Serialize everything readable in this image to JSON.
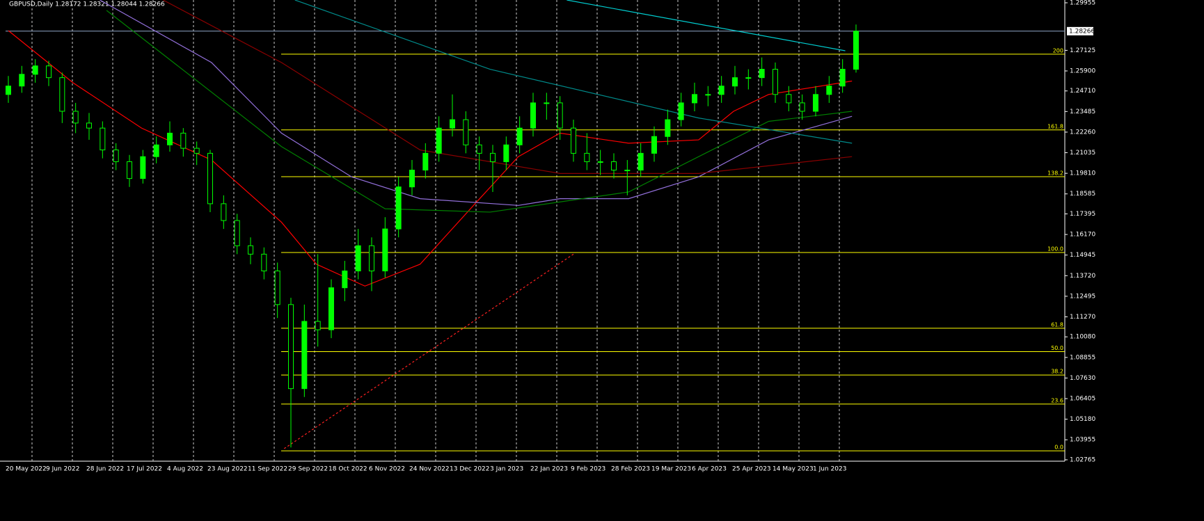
{
  "chart_data": {
    "type": "candlestick",
    "title": "GBPUSD,Daily  1.28172 1.28321 1.28044 1.28266",
    "categories": [
      "20 May 2022",
      "9 Jun 2022",
      "28 Jun 2022",
      "17 Jul 2022",
      "4 Aug 2022",
      "23 Aug 2022",
      "11 Sep 2022",
      "29 Sep 2022",
      "18 Oct 2022",
      "6 Nov 2022",
      "24 Nov 2022",
      "13 Dec 2022",
      "3 Jan 2023",
      "22 Jan 2023",
      "9 Feb 2023",
      "28 Feb 2023",
      "19 Mar 2023",
      "6 Apr 2023",
      "25 Apr 2023",
      "14 May 2023",
      "1 Jun 2023"
    ],
    "ohlc": [
      [
        1.245,
        1.256,
        1.24,
        1.25
      ],
      [
        1.25,
        1.262,
        1.246,
        1.257
      ],
      [
        1.257,
        1.266,
        1.252,
        1.262
      ],
      [
        1.262,
        1.265,
        1.25,
        1.255
      ],
      [
        1.255,
        1.258,
        1.228,
        1.235
      ],
      [
        1.235,
        1.24,
        1.222,
        1.228
      ],
      [
        1.228,
        1.234,
        1.218,
        1.225
      ],
      [
        1.225,
        1.229,
        1.207,
        1.212
      ],
      [
        1.212,
        1.216,
        1.2,
        1.205
      ],
      [
        1.205,
        1.209,
        1.19,
        1.195
      ],
      [
        1.195,
        1.212,
        1.192,
        1.208
      ],
      [
        1.208,
        1.22,
        1.204,
        1.215
      ],
      [
        1.215,
        1.229,
        1.211,
        1.222
      ],
      [
        1.222,
        1.225,
        1.208,
        1.213
      ],
      [
        1.213,
        1.217,
        1.203,
        1.21
      ],
      [
        1.21,
        1.212,
        1.175,
        1.18
      ],
      [
        1.18,
        1.185,
        1.165,
        1.17
      ],
      [
        1.17,
        1.174,
        1.15,
        1.155
      ],
      [
        1.155,
        1.16,
        1.144,
        1.15
      ],
      [
        1.15,
        1.154,
        1.135,
        1.14
      ],
      [
        1.14,
        1.145,
        1.112,
        1.12
      ],
      [
        1.12,
        1.124,
        1.035,
        1.07
      ],
      [
        1.07,
        1.12,
        1.065,
        1.11
      ],
      [
        1.11,
        1.15,
        1.095,
        1.105
      ],
      [
        1.105,
        1.135,
        1.1,
        1.13
      ],
      [
        1.13,
        1.146,
        1.122,
        1.14
      ],
      [
        1.14,
        1.165,
        1.135,
        1.155
      ],
      [
        1.155,
        1.16,
        1.128,
        1.14
      ],
      [
        1.14,
        1.172,
        1.136,
        1.165
      ],
      [
        1.165,
        1.196,
        1.16,
        1.19
      ],
      [
        1.19,
        1.206,
        1.185,
        1.2
      ],
      [
        1.2,
        1.216,
        1.195,
        1.21
      ],
      [
        1.21,
        1.232,
        1.205,
        1.225
      ],
      [
        1.225,
        1.245,
        1.22,
        1.23
      ],
      [
        1.23,
        1.235,
        1.21,
        1.215
      ],
      [
        1.215,
        1.22,
        1.2,
        1.21
      ],
      [
        1.21,
        1.215,
        1.187,
        1.205
      ],
      [
        1.205,
        1.22,
        1.2,
        1.215
      ],
      [
        1.215,
        1.232,
        1.21,
        1.225
      ],
      [
        1.225,
        1.246,
        1.22,
        1.24
      ],
      [
        1.24,
        1.246,
        1.23,
        1.24
      ],
      [
        1.24,
        1.244,
        1.218,
        1.225
      ],
      [
        1.225,
        1.23,
        1.205,
        1.21
      ],
      [
        1.21,
        1.222,
        1.2,
        1.205
      ],
      [
        1.205,
        1.212,
        1.197,
        1.205
      ],
      [
        1.205,
        1.21,
        1.195,
        1.2
      ],
      [
        1.2,
        1.206,
        1.185,
        1.2
      ],
      [
        1.2,
        1.216,
        1.196,
        1.21
      ],
      [
        1.21,
        1.226,
        1.205,
        1.22
      ],
      [
        1.22,
        1.236,
        1.215,
        1.23
      ],
      [
        1.23,
        1.246,
        1.226,
        1.24
      ],
      [
        1.24,
        1.252,
        1.235,
        1.245
      ],
      [
        1.245,
        1.25,
        1.238,
        1.245
      ],
      [
        1.245,
        1.256,
        1.24,
        1.25
      ],
      [
        1.25,
        1.262,
        1.245,
        1.255
      ],
      [
        1.255,
        1.26,
        1.248,
        1.255
      ],
      [
        1.255,
        1.267,
        1.25,
        1.26
      ],
      [
        1.26,
        1.264,
        1.24,
        1.245
      ],
      [
        1.245,
        1.25,
        1.235,
        1.24
      ],
      [
        1.24,
        1.245,
        1.23,
        1.235
      ],
      [
        1.235,
        1.25,
        1.232,
        1.245
      ],
      [
        1.245,
        1.256,
        1.24,
        1.25
      ],
      [
        1.25,
        1.266,
        1.246,
        1.26
      ],
      [
        1.26,
        1.2866,
        1.258,
        1.28266
      ]
    ],
    "candle_color": "#00ff00",
    "lines": [
      {
        "color": "#ff0000",
        "x": [
          0,
          4.8,
          9.9,
          15.1,
          20.3,
          22.9,
          26.5,
          30.6,
          34.8,
          37.9,
          41,
          46.1,
          51.3,
          53.9,
          56.5,
          62.7
        ],
        "values": [
          1.283,
          1.252,
          1.225,
          1.206,
          1.169,
          1.144,
          1.131,
          1.144,
          1.181,
          1.208,
          1.222,
          1.216,
          1.218,
          1.235,
          1.245,
          1.253
        ]
      },
      {
        "color": "#9370db",
        "x": [
          6.8,
          15.1,
          20.3,
          25.5,
          30.6,
          37.9,
          41,
          46.1,
          51.3,
          56.5,
          62.7
        ],
        "values": [
          1.3012,
          1.264,
          1.222,
          1.196,
          1.183,
          1.179,
          1.183,
          1.183,
          1.196,
          1.218,
          1.232
        ]
      },
      {
        "color": "#008000",
        "x": [
          7.3,
          20.3,
          28.0,
          35.8,
          46.1,
          56.5,
          62.7
        ],
        "values": [
          1.295,
          1.214,
          1.177,
          1.175,
          1.187,
          1.229,
          1.235
        ]
      },
      {
        "color": "#8b0000",
        "x": [
          11.5,
          20.3,
          30.6,
          41,
          51.3,
          62.7
        ],
        "values": [
          1.3012,
          1.264,
          1.212,
          1.198,
          1.198,
          1.208
        ]
      },
      {
        "color": "#008b8b",
        "x": [
          21.3,
          35.8,
          51.3,
          62.7
        ],
        "values": [
          1.3012,
          1.26,
          1.231,
          1.216
        ]
      },
      {
        "color": "#00ced1",
        "x": [
          41.5,
          62.2
        ],
        "values": [
          1.3012,
          1.271
        ]
      },
      {
        "color": "#ff2020",
        "dashed": true,
        "x": [
          20.5,
          42
        ],
        "values": [
          1.0343,
          1.15
        ]
      }
    ],
    "fib_color": "#ffff00",
    "fib_levels": [
      {
        "value": 1.033,
        "label": "0.0"
      },
      {
        "value": 1.0608,
        "label": "23.6"
      },
      {
        "value": 1.0781,
        "label": "38.2"
      },
      {
        "value": 1.092,
        "label": "50.0"
      },
      {
        "value": 1.1059,
        "label": "61.8"
      },
      {
        "value": 1.151,
        "label": "100.0"
      },
      {
        "value": 1.1961,
        "label": "138.2"
      },
      {
        "value": 1.2239,
        "label": "161.8"
      },
      {
        "value": 1.269,
        "label": "200"
      }
    ],
    "bid": 1.28266,
    "ylim": [
      1.02765,
      1.29955
    ],
    "yticks": [
      1.29955,
      1.27125,
      {
        "value": 1.259,
        "label": "1.25900"
      },
      {
        "value": 1.2471,
        "label": "1.24710"
      },
      1.23485,
      {
        "value": 1.2226,
        "label": "1.22260"
      },
      1.21035,
      {
        "value": 1.1981,
        "label": "1.19810"
      },
      1.18585,
      1.17395,
      {
        "value": 1.1617,
        "label": "1.16170"
      },
      1.14945,
      {
        "value": 1.1372,
        "label": "1.13720"
      },
      1.12495,
      {
        "value": 1.1127,
        "label": "1.11270"
      },
      {
        "value": 1.1008,
        "label": "1.10080"
      },
      1.08855,
      {
        "value": 1.0763,
        "label": "1.07630"
      },
      1.06405,
      {
        "value": 1.0518,
        "label": "1.05180"
      },
      1.03955,
      1.02765
    ],
    "grid": true
  }
}
